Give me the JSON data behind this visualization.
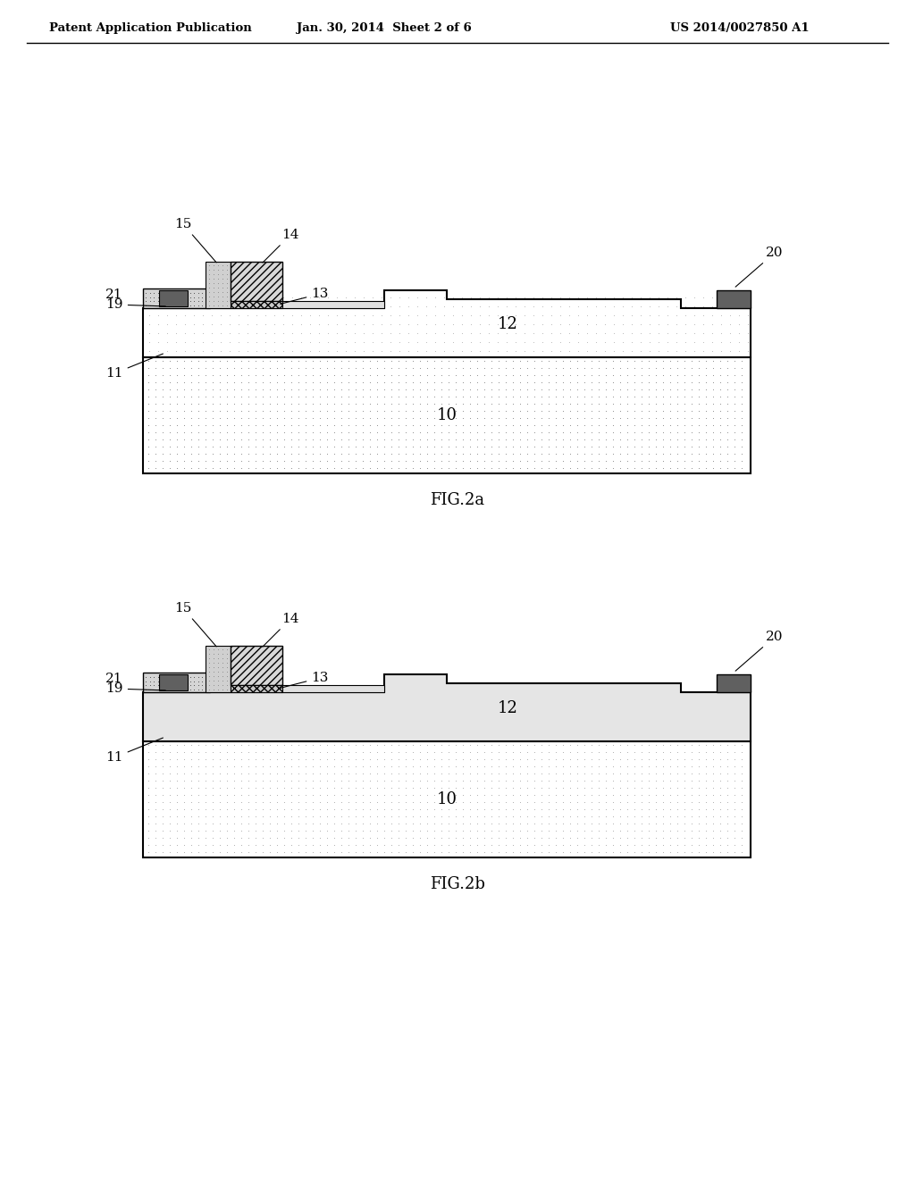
{
  "header_left": "Patent Application Publication",
  "header_mid": "Jan. 30, 2014  Sheet 2 of 6",
  "header_right": "US 2014/0027850 A1",
  "fig2a_caption": "FIG.2a",
  "fig2b_caption": "FIG.2b",
  "bg_color": "#ffffff"
}
